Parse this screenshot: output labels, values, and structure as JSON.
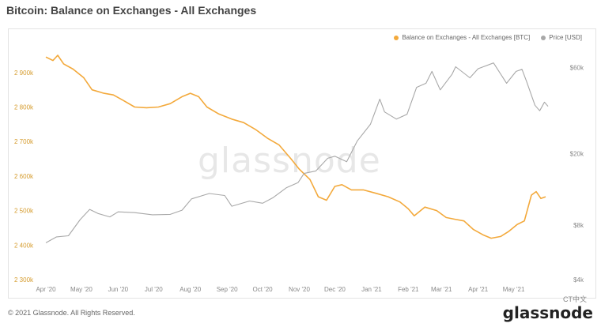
{
  "title": "Bitcoin: Balance on Exchanges - All Exchanges",
  "copyright": "© 2021 Glassnode. All Rights Reserved.",
  "watermark": "glassnode",
  "brand": "glassnode",
  "brand_badge": "CT中文",
  "colors": {
    "balance": "#f3a93b",
    "price": "#a8a8a8",
    "axis_left": "#d59b2c",
    "axis_right": "#888888"
  },
  "chart_data": {
    "type": "line",
    "title": "Bitcoin: Balance on Exchanges - All Exchanges",
    "legend_position": "top-right",
    "grid": false,
    "x_ticks": [
      "Apr '20",
      "May '20",
      "Jun '20",
      "Jul '20",
      "Aug '20",
      "Sep '20",
      "Oct '20",
      "Nov '20",
      "Dec '20",
      "Jan '21",
      "Feb '21",
      "Mar '21",
      "Apr '21",
      "May '21"
    ],
    "y_left": {
      "ticks": [
        "2 300k",
        "2 400k",
        "2 500k",
        "2 600k",
        "2 700k",
        "2 800k",
        "2 900k"
      ],
      "range": [
        2300000,
        2950000
      ]
    },
    "y_right": {
      "scale": "log",
      "ticks": [
        "$4k",
        "$8k",
        "$20k",
        "$60k"
      ],
      "range": [
        4000,
        70000
      ]
    },
    "series": [
      {
        "name": "Balance on Exchanges - All Exchanges [BTC]",
        "axis": "left",
        "points": [
          [
            "2020-04-01",
            2945000
          ],
          [
            "2020-04-07",
            2935000
          ],
          [
            "2020-04-11",
            2950000
          ],
          [
            "2020-04-16",
            2925000
          ],
          [
            "2020-04-24",
            2910000
          ],
          [
            "2020-05-03",
            2885000
          ],
          [
            "2020-05-10",
            2850000
          ],
          [
            "2020-05-20",
            2840000
          ],
          [
            "2020-05-28",
            2835000
          ],
          [
            "2020-06-05",
            2820000
          ],
          [
            "2020-06-15",
            2800000
          ],
          [
            "2020-06-25",
            2798000
          ],
          [
            "2020-07-05",
            2800000
          ],
          [
            "2020-07-15",
            2810000
          ],
          [
            "2020-07-25",
            2830000
          ],
          [
            "2020-08-01",
            2840000
          ],
          [
            "2020-08-08",
            2830000
          ],
          [
            "2020-08-15",
            2800000
          ],
          [
            "2020-08-25",
            2780000
          ],
          [
            "2020-09-05",
            2765000
          ],
          [
            "2020-09-15",
            2755000
          ],
          [
            "2020-09-25",
            2735000
          ],
          [
            "2020-10-05",
            2710000
          ],
          [
            "2020-10-15",
            2690000
          ],
          [
            "2020-10-25",
            2650000
          ],
          [
            "2020-11-01",
            2620000
          ],
          [
            "2020-11-10",
            2590000
          ],
          [
            "2020-11-17",
            2540000
          ],
          [
            "2020-11-24",
            2530000
          ],
          [
            "2020-12-01",
            2570000
          ],
          [
            "2020-12-07",
            2575000
          ],
          [
            "2020-12-15",
            2560000
          ],
          [
            "2020-12-25",
            2560000
          ],
          [
            "2021-01-05",
            2550000
          ],
          [
            "2021-01-15",
            2540000
          ],
          [
            "2021-01-25",
            2525000
          ],
          [
            "2021-02-01",
            2505000
          ],
          [
            "2021-02-06",
            2485000
          ],
          [
            "2021-02-15",
            2510000
          ],
          [
            "2021-02-25",
            2500000
          ],
          [
            "2021-03-05",
            2480000
          ],
          [
            "2021-03-12",
            2475000
          ],
          [
            "2021-03-20",
            2470000
          ],
          [
            "2021-03-28",
            2445000
          ],
          [
            "2021-04-05",
            2430000
          ],
          [
            "2021-04-12",
            2420000
          ],
          [
            "2021-04-20",
            2425000
          ],
          [
            "2021-04-27",
            2440000
          ],
          [
            "2021-05-04",
            2460000
          ],
          [
            "2021-05-10",
            2470000
          ],
          [
            "2021-05-16",
            2545000
          ],
          [
            "2021-05-20",
            2555000
          ],
          [
            "2021-05-24",
            2535000
          ],
          [
            "2021-05-28",
            2540000
          ]
        ]
      },
      {
        "name": "Price [USD]",
        "axis": "right",
        "points": [
          [
            "2020-04-01",
            6400
          ],
          [
            "2020-04-10",
            6900
          ],
          [
            "2020-04-20",
            7000
          ],
          [
            "2020-04-30",
            8600
          ],
          [
            "2020-05-08",
            9800
          ],
          [
            "2020-05-15",
            9300
          ],
          [
            "2020-05-25",
            8900
          ],
          [
            "2020-06-01",
            9500
          ],
          [
            "2020-06-15",
            9400
          ],
          [
            "2020-06-30",
            9150
          ],
          [
            "2020-07-15",
            9200
          ],
          [
            "2020-07-25",
            9700
          ],
          [
            "2020-08-02",
            11200
          ],
          [
            "2020-08-17",
            12000
          ],
          [
            "2020-08-30",
            11700
          ],
          [
            "2020-09-05",
            10200
          ],
          [
            "2020-09-20",
            10900
          ],
          [
            "2020-10-01",
            10600
          ],
          [
            "2020-10-10",
            11400
          ],
          [
            "2020-10-21",
            12900
          ],
          [
            "2020-10-31",
            13800
          ],
          [
            "2020-11-05",
            15500
          ],
          [
            "2020-11-15",
            16000
          ],
          [
            "2020-11-25",
            18800
          ],
          [
            "2020-12-01",
            19300
          ],
          [
            "2020-12-11",
            18000
          ],
          [
            "2020-12-20",
            23500
          ],
          [
            "2020-12-31",
            29000
          ],
          [
            "2021-01-08",
            40000
          ],
          [
            "2021-01-12",
            34000
          ],
          [
            "2021-01-22",
            31000
          ],
          [
            "2021-01-31",
            33000
          ],
          [
            "2021-02-08",
            46500
          ],
          [
            "2021-02-16",
            49000
          ],
          [
            "2021-02-21",
            57000
          ],
          [
            "2021-02-28",
            45000
          ],
          [
            "2021-03-10",
            55000
          ],
          [
            "2021-03-13",
            60500
          ],
          [
            "2021-03-25",
            52500
          ],
          [
            "2021-04-01",
            59000
          ],
          [
            "2021-04-14",
            63500
          ],
          [
            "2021-04-25",
            49000
          ],
          [
            "2021-05-03",
            57000
          ],
          [
            "2021-05-08",
            58500
          ],
          [
            "2021-05-12",
            50000
          ],
          [
            "2021-05-19",
            37000
          ],
          [
            "2021-05-23",
            34500
          ],
          [
            "2021-05-27",
            38500
          ],
          [
            "2021-05-30",
            36500
          ]
        ]
      }
    ]
  }
}
